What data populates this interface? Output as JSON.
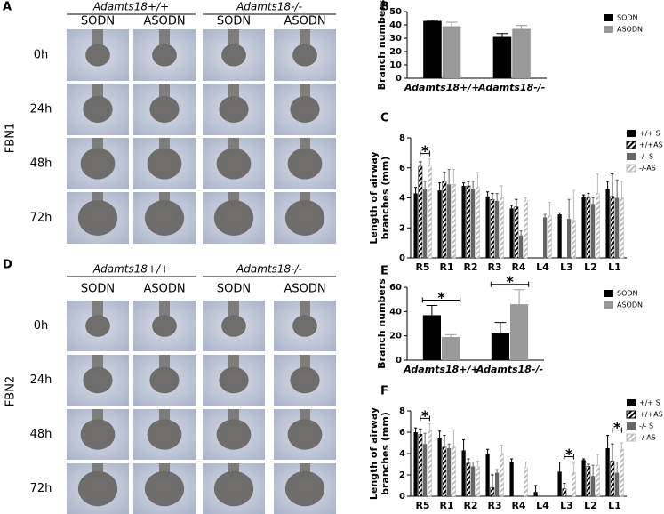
{
  "figure": {
    "panel_labels": [
      "A",
      "B",
      "C",
      "D",
      "E",
      "F"
    ],
    "image_panels": [
      {
        "genotypes": [
          "Adamts18+/+",
          "Adamts18-/-"
        ],
        "treatments": [
          "SODN",
          "ASODN",
          "SODN",
          "ASODN"
        ],
        "times": [
          "0h",
          "24h",
          "48h",
          "72h"
        ],
        "protein": "FBN1"
      },
      {
        "genotypes": [
          "Adamts18+/+",
          "Adamts18-/-"
        ],
        "treatments": [
          "SODN",
          "ASODN",
          "SODN",
          "ASODN"
        ],
        "times": [
          "0h",
          "24h",
          "48h",
          "72h"
        ],
        "protein": "FBN2"
      }
    ]
  },
  "chart_data": [
    {
      "type": "bar",
      "ylabel": [
        "Branch numbers"
      ],
      "categories": [
        "Adamts18+/+",
        "Adamts18-/-"
      ],
      "series": [
        {
          "name": "SODN",
          "color": "#000000",
          "values": [
            43,
            31
          ],
          "errors": [
            0.5,
            2.5
          ]
        },
        {
          "name": "ASODN",
          "color": "#999999",
          "values": [
            39,
            37
          ],
          "errors": [
            3,
            2.5
          ]
        }
      ],
      "ylim": [
        0,
        50
      ],
      "yticks": [
        0,
        10,
        20,
        30,
        40,
        50
      ],
      "annotations": []
    },
    {
      "type": "bar",
      "ylabel": [
        "Length of airway",
        "branches (mm)"
      ],
      "categories": [
        "R5",
        "R1",
        "R2",
        "R3",
        "R4",
        "L4",
        "L3",
        "L2",
        "L1"
      ],
      "series": [
        {
          "name": "+/+ S",
          "color": "#000000",
          "hatch": false,
          "values": [
            4.3,
            4.5,
            4.8,
            4.1,
            3.3,
            null,
            2.9,
            4.1,
            4.6
          ],
          "errors": [
            0.4,
            0.5,
            0.2,
            0.3,
            0.2,
            null,
            0.1,
            0.1,
            0.5
          ]
        },
        {
          "name": "+/+AS",
          "color": "#000000",
          "hatch": true,
          "values": [
            6.1,
            5.1,
            4.8,
            3.9,
            3.4,
            null,
            null,
            4.0,
            4.1
          ],
          "errors": [
            0.3,
            0.6,
            0.3,
            0.4,
            0.5,
            null,
            null,
            0.3,
            1.5
          ]
        },
        {
          "name": "-/- S",
          "color": "#666666",
          "hatch": false,
          "values": [
            4.6,
            4.9,
            4.6,
            3.8,
            1.5,
            2.7,
            2.6,
            3.6,
            4.0
          ],
          "errors": [
            0.5,
            1.0,
            0.5,
            0.5,
            0.3,
            0.2,
            1.3,
            0.4,
            1.2
          ]
        },
        {
          "name": "-/-AS",
          "color": "#bbbbbb",
          "hatch": true,
          "values": [
            6.2,
            4.9,
            4.7,
            4.0,
            3.8,
            2.8,
            2.5,
            4.3,
            4.0
          ],
          "errors": [
            0.4,
            1.0,
            1.0,
            0.8,
            0.2,
            0.9,
            2.0,
            1.3,
            1.1
          ]
        }
      ],
      "ylim": [
        0,
        8
      ],
      "yticks": [
        0,
        2,
        4,
        6,
        8
      ],
      "annotations": [
        "*"
      ]
    },
    {
      "type": "bar",
      "ylabel": [
        "Branch numbers"
      ],
      "categories": [
        "Adamts18+/+",
        "Adamts18-/-"
      ],
      "series": [
        {
          "name": "SODN",
          "color": "#000000",
          "values": [
            37,
            22
          ],
          "errors": [
            8,
            9
          ]
        },
        {
          "name": "ASODN",
          "color": "#999999",
          "values": [
            19,
            46
          ],
          "errors": [
            2,
            12
          ]
        }
      ],
      "ylim": [
        0,
        60
      ],
      "yticks": [
        0,
        20,
        40,
        60
      ],
      "annotations": [
        "*",
        "*"
      ]
    },
    {
      "type": "bar",
      "ylabel": [
        "Length of airway",
        "branches (mm)"
      ],
      "categories": [
        "R5",
        "R1",
        "R2",
        "R3",
        "R4",
        "L4",
        "L3",
        "L2",
        "L1"
      ],
      "series": [
        {
          "name": "+/+ S",
          "color": "#000000",
          "hatch": false,
          "values": [
            6.0,
            5.5,
            4.3,
            4.0,
            3.2,
            0.4,
            2.3,
            3.4,
            4.5
          ],
          "errors": [
            0.4,
            0.6,
            1.0,
            0.4,
            0.3,
            0.6,
            0.9,
            0.1,
            1.2
          ]
        },
        {
          "name": "+/+AS",
          "color": "#000000",
          "hatch": true,
          "values": [
            5.8,
            4.6,
            3.1,
            0.8,
            null,
            null,
            0.7,
            2.8,
            3.3
          ],
          "errors": [
            0.5,
            1.1,
            0.4,
            1.2,
            null,
            null,
            0.5,
            0.2,
            1.6
          ]
        },
        {
          "name": "-/- S",
          "color": "#666666",
          "hatch": false,
          "values": [
            4.9,
            4.5,
            2.8,
            2.2,
            null,
            null,
            null,
            1.9,
            2.2
          ],
          "errors": [
            1.0,
            0.4,
            0.4,
            0.3,
            null,
            null,
            null,
            1.0,
            1.0
          ]
        },
        {
          "name": "-/-AS",
          "color": "#bbbbbb",
          "hatch": true,
          "values": [
            6.2,
            4.6,
            2.8,
            4.0,
            2.7,
            null,
            2.2,
            2.9,
            4.4
          ],
          "errors": [
            0.6,
            1.6,
            0.5,
            0.8,
            0.5,
            null,
            0.9,
            1.0,
            0.6
          ]
        }
      ],
      "ylim": [
        0,
        8
      ],
      "yticks": [
        0,
        2,
        4,
        6,
        8
      ],
      "annotations": [
        "*",
        "*",
        "*"
      ]
    }
  ]
}
